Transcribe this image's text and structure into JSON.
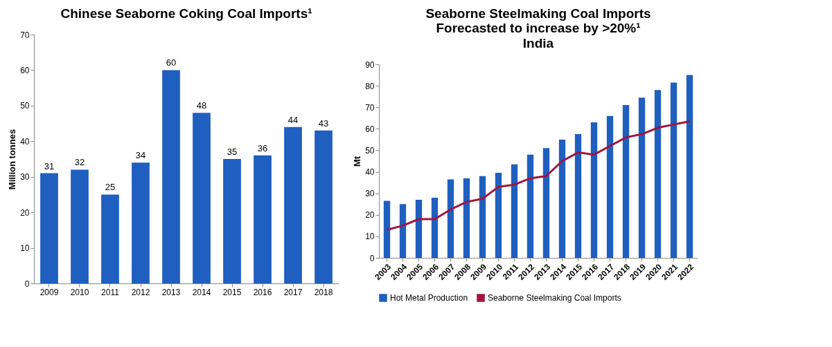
{
  "chart_data": [
    {
      "type": "bar",
      "title": "Chinese Seaborne Coking Coal Imports¹",
      "ylabel": "Million tonnes",
      "categories": [
        "2009",
        "2010",
        "2011",
        "2012",
        "2013",
        "2014",
        "2015",
        "2016",
        "2017",
        "2018"
      ],
      "values": [
        31,
        32,
        25,
        34,
        60,
        48,
        35,
        36,
        44,
        43
      ],
      "color": "#1f5fbf",
      "data_labels": true,
      "ylim": [
        0,
        70
      ],
      "yticks": [
        0,
        10,
        20,
        30,
        40,
        50,
        60,
        70
      ],
      "grid": false,
      "legend": false
    },
    {
      "type": "bar",
      "title": "Seaborne Steelmaking Coal Imports\nForecasted to increase by >20%¹",
      "subtitle": "India",
      "ylabel": "Mt",
      "categories": [
        "2003",
        "2004",
        "2005",
        "2006",
        "2007",
        "2008",
        "2009",
        "2010",
        "2011",
        "2012",
        "2013",
        "2014",
        "2015",
        "2016",
        "2017",
        "2018",
        "2019",
        "2020",
        "2021",
        "2022"
      ],
      "series": [
        {
          "name": "Hot Metal Production",
          "type": "bar",
          "color": "#1f5fbf",
          "values": [
            26.5,
            25,
            27,
            28,
            36.5,
            37,
            38,
            39.5,
            43.5,
            48,
            51,
            55,
            57.5,
            63,
            66,
            71,
            74.5,
            78,
            81.5,
            85
          ]
        },
        {
          "name": "Seaborne Steelmaking Coal Imports",
          "type": "line",
          "color": "#a0153e",
          "values": [
            13,
            15,
            18,
            18,
            22.5,
            26,
            27.5,
            33,
            34,
            37,
            38,
            45,
            49,
            48,
            52,
            56,
            57.5,
            60.5,
            62,
            63.5
          ]
        }
      ],
      "ylim": [
        0,
        90
      ],
      "yticks": [
        0,
        10,
        20,
        30,
        40,
        50,
        60,
        70,
        80,
        90
      ],
      "grid": false,
      "legend": "bottom"
    }
  ]
}
